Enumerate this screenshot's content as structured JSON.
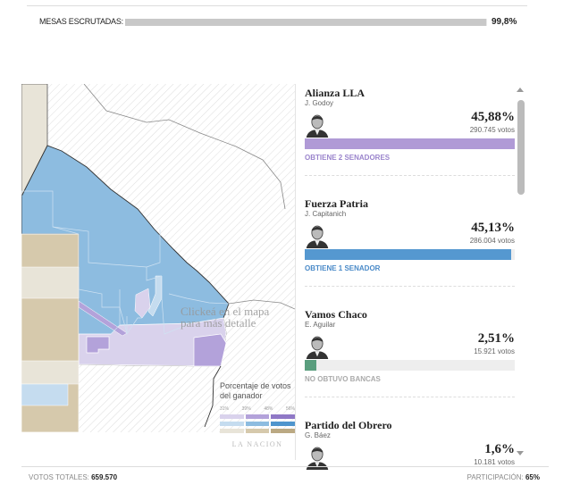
{
  "progress": {
    "label": "MESAS ESCRUTADAS:",
    "value_text": "99,8%",
    "value": 99.8
  },
  "map": {
    "hint": "Clickeá en el mapa para más detalle",
    "legend": {
      "title": "Porcentaje de votos del ganador",
      "ticks": [
        "31%",
        "39%",
        "48%",
        "56%"
      ],
      "rows": [
        [
          "#d9d2ec",
          "#b3a2da",
          "#8f78c6"
        ],
        [
          "#c5dcef",
          "#8dbce0",
          "#4f95cd"
        ],
        [
          "#e8e4d8",
          "#d6c9ac",
          "#bba983"
        ]
      ],
      "logo": "LA NACION"
    }
  },
  "candidates": [
    {
      "party": "Alianza LLA",
      "name": "J. Godoy",
      "pct": "45,88%",
      "pct_value": 45.88,
      "votes": "290.745 votos",
      "result": "OBTIENE 2 SENADORES",
      "color": "#b09ad6",
      "result_color": "#9a84cc"
    },
    {
      "party": "Fuerza Patria",
      "name": "J. Capitanich",
      "pct": "45,13%",
      "pct_value": 45.13,
      "votes": "286.004 votos",
      "result": "OBTIENE 1 SENADOR",
      "color": "#5598d0",
      "result_color": "#4a8ac8"
    },
    {
      "party": "Vamos Chaco",
      "name": "E. Aguilar",
      "pct": "2,51%",
      "pct_value": 2.51,
      "votes": "15.921 votos",
      "result": "NO OBTUVO BANCAS",
      "color": "#5a9e7e",
      "result_color": "#aaaaaa"
    },
    {
      "party": "Partido del Obrero",
      "name": "G. Báez",
      "pct": "1,6%",
      "pct_value": 1.6,
      "votes": "10.181 votos",
      "result": "",
      "color": "#888888",
      "result_color": "#aaaaaa"
    }
  ],
  "footer": {
    "total_label": "VOTOS TOTALES:",
    "total": "659.570",
    "participation_label": "PARTICIPACIÓN:",
    "participation": "65%"
  }
}
